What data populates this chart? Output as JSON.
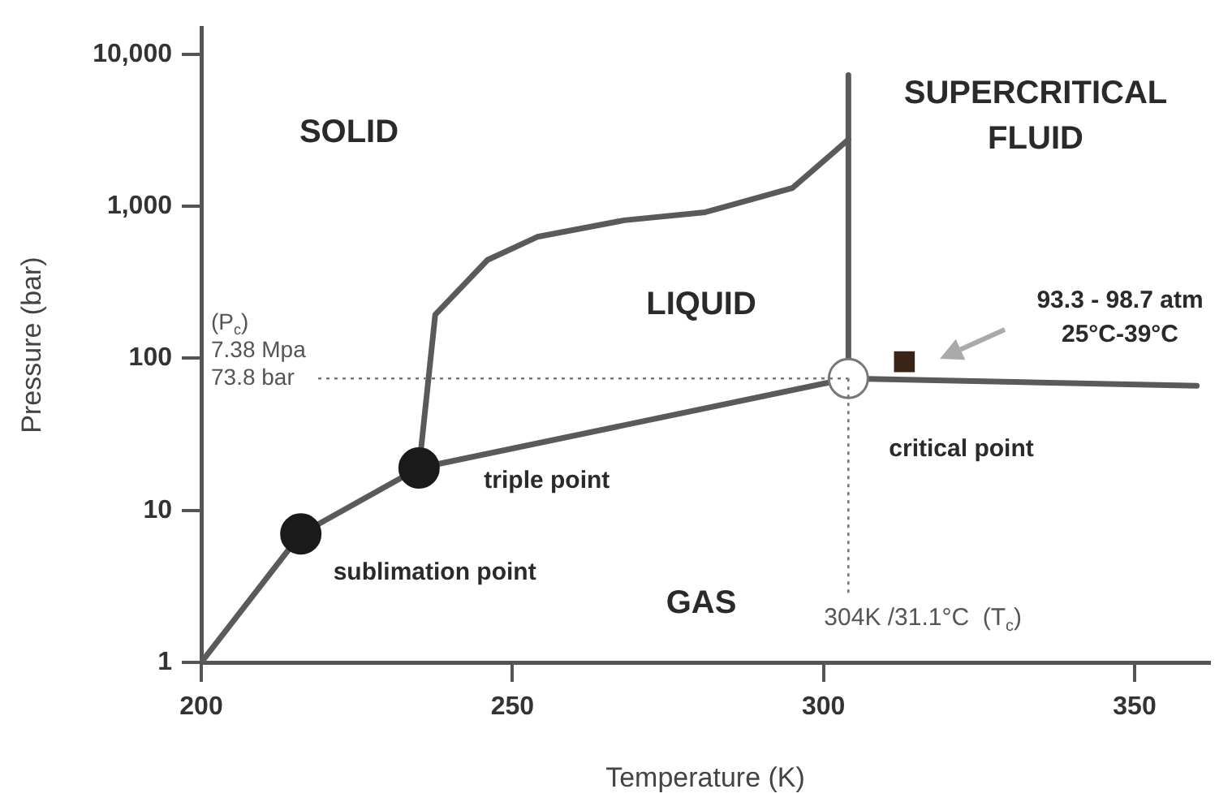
{
  "chart_data": {
    "type": "line",
    "xlabel": "Temperature (K)",
    "ylabel": "Pressure (bar)",
    "xlim": [
      200,
      362
    ],
    "xticks": [
      200,
      250,
      300,
      350
    ],
    "ylim": [
      1,
      15000
    ],
    "yticks": [
      1,
      10,
      100,
      {
        "value": 1000,
        "label": "1,000"
      },
      {
        "value": 10000,
        "label": "10,000"
      }
    ],
    "log": "y",
    "grid": false,
    "legend": false,
    "marker": "none",
    "line_style": "solid",
    "series": [
      {
        "color": "#5a5a5a",
        "x": [
          200,
          216,
          235
        ],
        "values": [
          1,
          7,
          19
        ]
      },
      {
        "color": "#5a5a5a",
        "x": [
          235,
          304
        ],
        "values": [
          19,
          73.8
        ]
      },
      {
        "color": "#5a5a5a",
        "x": [
          235,
          237.6,
          246,
          254,
          268,
          281,
          295,
          304
        ],
        "values": [
          19,
          194,
          444,
          630,
          810,
          915,
          1320,
          2750
        ]
      },
      {
        "color": "#5a5a5a",
        "x": [
          304,
          304
        ],
        "values": [
          73.8,
          7300
        ]
      },
      {
        "color": "#5a5a5a",
        "x": [
          304,
          360
        ],
        "values": [
          73.8,
          66
        ]
      },
      {
        "type": "scatter",
        "marker": "circle",
        "colors": [
          "#1a1a1a",
          "#1a1a1a",
          "#ffffff"
        ],
        "x": [
          216,
          235,
          304
        ],
        "values": [
          7,
          19,
          73.8
        ]
      },
      {
        "type": "scatter",
        "marker": "square",
        "color": "#3a2418",
        "x": [
          313
        ],
        "values": [
          95
        ]
      }
    ],
    "ref_lines": [
      {
        "axis": "y",
        "value": 73.8,
        "label": "(P$_{c}$) 7.38 Mpa 73.8 bar",
        "line_style": "dotted",
        "color": "#777777"
      },
      {
        "axis": "x",
        "value": 304,
        "label": "304K /31.1°C  (T$_{c}$)",
        "line_style": "dotted",
        "color": "#777777"
      }
    ],
    "annotations": [
      "SOLID",
      "LIQUID",
      "GAS",
      "SUPERCRITICAL FLUID",
      {
        "text": "sublimation point",
        "x": 216,
        "y": 7
      },
      {
        "text": "triple point",
        "x": 235,
        "y": 19
      },
      {
        "text": "critical point",
        "x": 304,
        "y": 73.8
      },
      "93.3 - 98.7 atm 25°C-39°C"
    ]
  }
}
